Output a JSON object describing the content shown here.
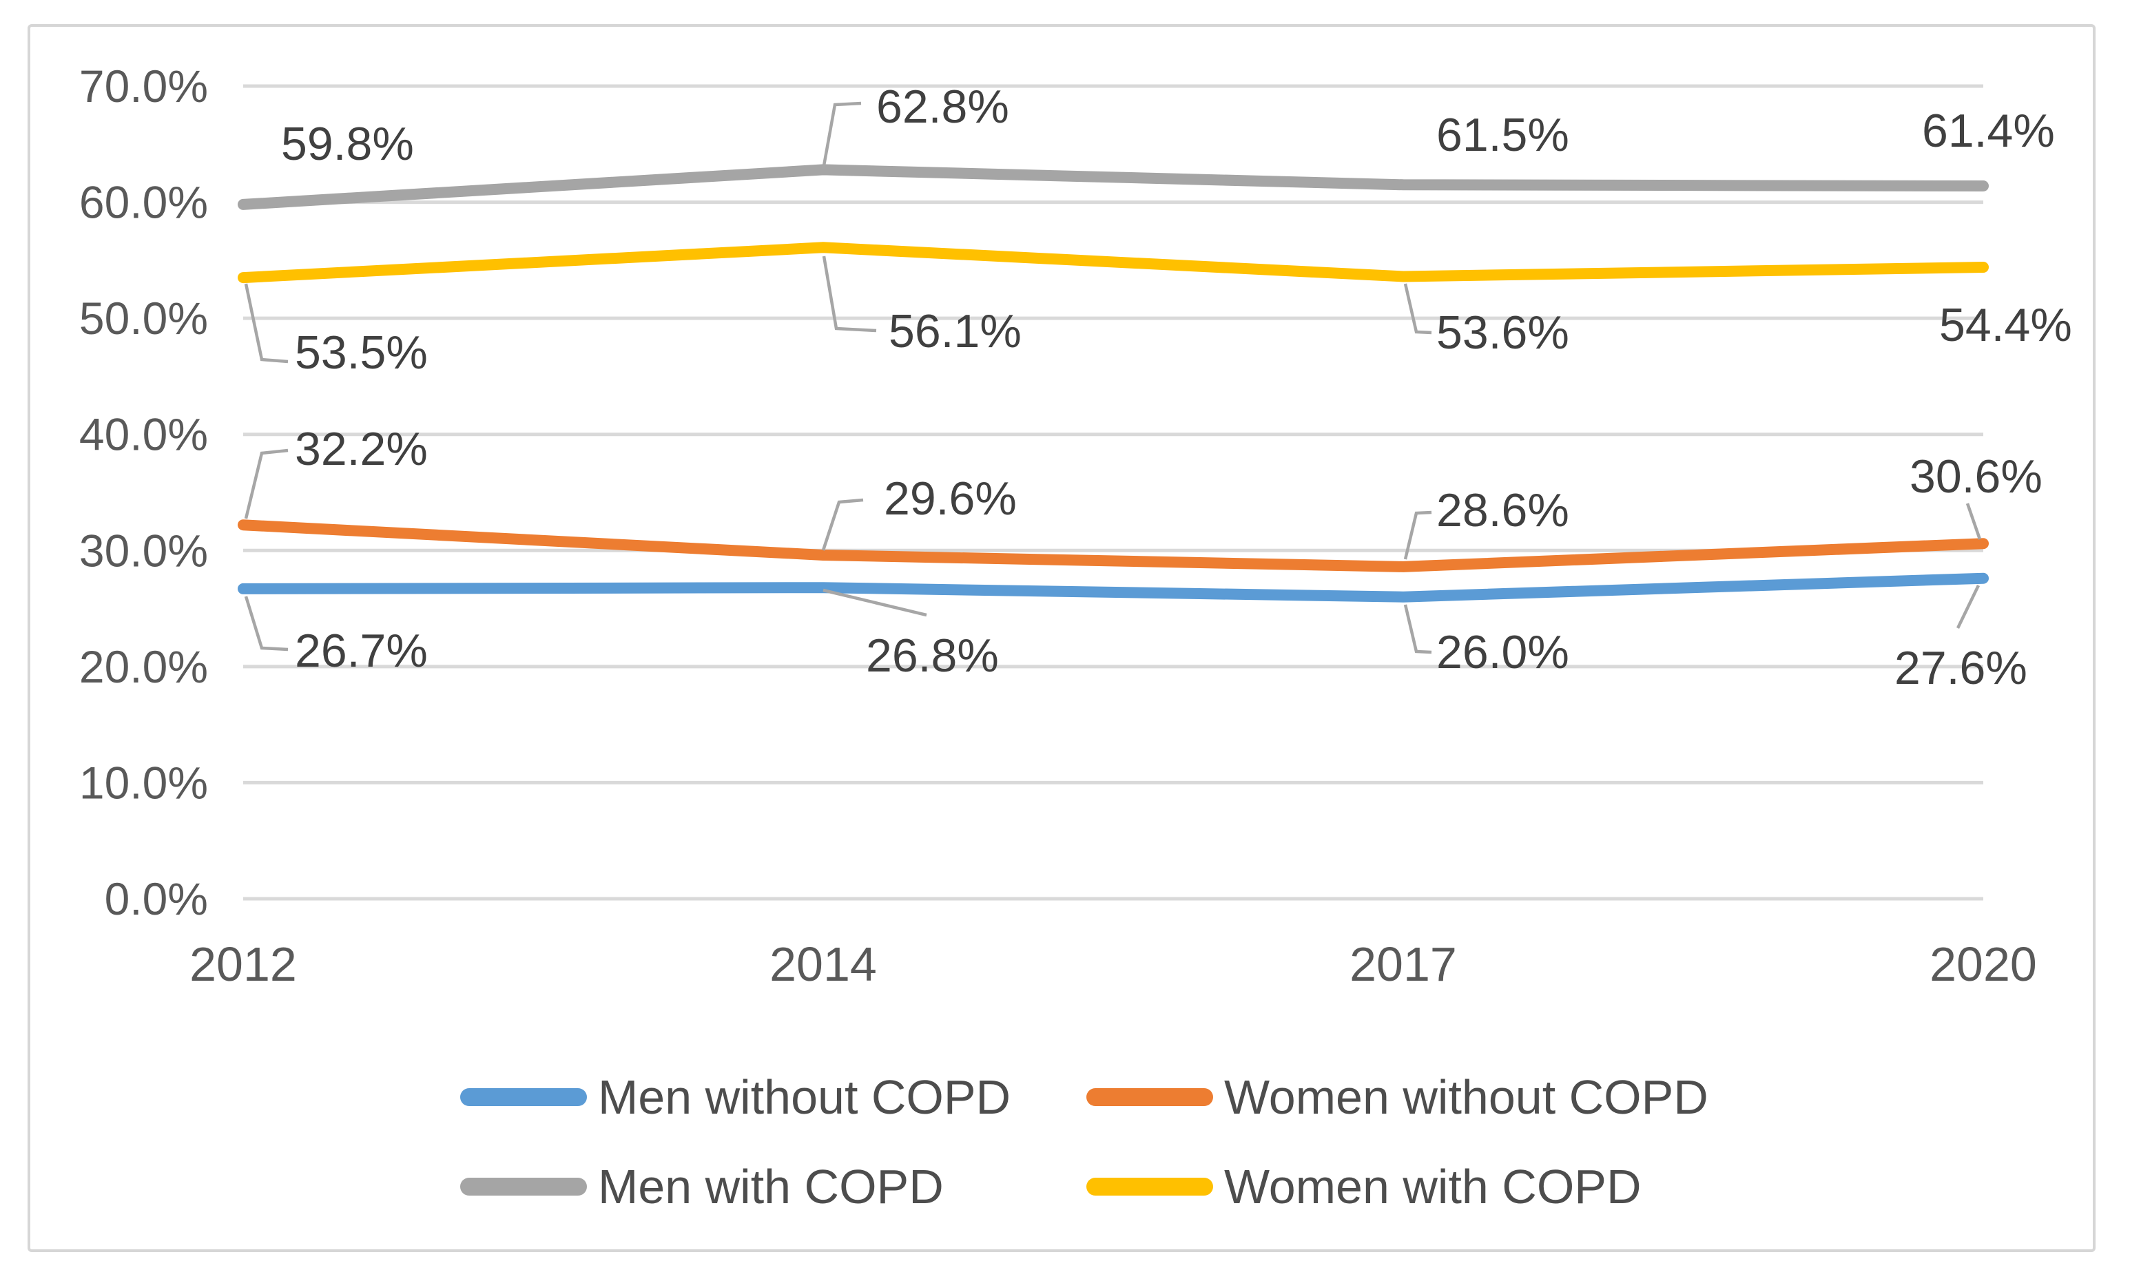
{
  "chart_data": {
    "type": "line",
    "title": "",
    "x_categories": [
      "2012",
      "2014",
      "2017",
      "2020"
    ],
    "y_axis": {
      "min": 0,
      "max": 70,
      "step": 10,
      "tick_labels": [
        "70.0%",
        "60.0%",
        "50.0%",
        "40.0%",
        "30.0%",
        "20.0%",
        "10.0%",
        "0.0%"
      ],
      "grid": true
    },
    "series": [
      {
        "name": "Men with COPD",
        "color": "#A5A5A5",
        "values": [
          59.8,
          62.8,
          61.5,
          61.4
        ],
        "data_labels": [
          "59.8%",
          "62.8%",
          "61.5%",
          "61.4%"
        ]
      },
      {
        "name": "Women with COPD",
        "color": "#FFC000",
        "values": [
          53.5,
          56.1,
          53.6,
          54.4
        ],
        "data_labels": [
          "53.5%",
          "56.1%",
          "53.6%",
          "54.4%"
        ]
      },
      {
        "name": "Women without COPD",
        "color": "#ED7D31",
        "values": [
          32.2,
          29.6,
          28.6,
          30.6
        ],
        "data_labels": [
          "32.2%",
          "29.6%",
          "28.6%",
          "30.6%"
        ]
      },
      {
        "name": "Men without COPD",
        "color": "#5B9BD5",
        "values": [
          26.7,
          26.8,
          26.0,
          27.6
        ],
        "data_labels": [
          "26.7%",
          "26.8%",
          "26.0%",
          "27.6%"
        ]
      }
    ],
    "legend": {
      "position": "bottom",
      "entries": [
        {
          "label": "Men without COPD",
          "color": "#5B9BD5"
        },
        {
          "label": "Women without COPD",
          "color": "#ED7D31"
        },
        {
          "label": "Men with COPD",
          "color": "#A5A5A5"
        },
        {
          "label": "Women with COPD",
          "color": "#FFC000"
        }
      ]
    },
    "style_colors": {
      "gridline": "#D9D9D9",
      "frame_border": "#D6D6D6",
      "axis_tick_text": "#595959",
      "data_label_text": "#404040",
      "legend_text": "#4D4D4D",
      "leader_line": "#A6A6A6",
      "background": "#FFFFFF"
    }
  }
}
